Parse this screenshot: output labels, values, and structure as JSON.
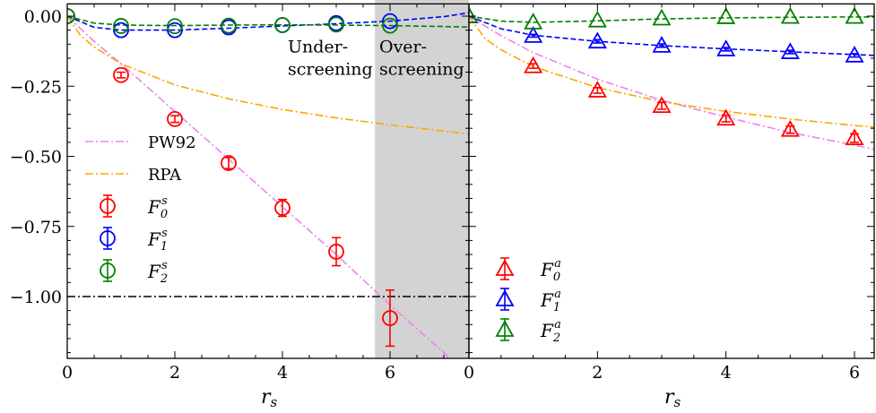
{
  "chart_data": [
    {
      "type": "line",
      "panel": "left",
      "xlabel": "r_s",
      "ylabel": "",
      "xlim": [
        0,
        7.47
      ],
      "ylim": [
        -1.22,
        0.05
      ],
      "xticks": [
        0,
        2,
        4,
        6
      ],
      "xtick_labels": [
        "0",
        "2",
        "4",
        "6"
      ],
      "yticks": [
        0,
        -0.25,
        -0.5,
        -0.75,
        -1.0
      ],
      "ytick_labels": [
        "0.00",
        "−0.25",
        "−0.50",
        "−0.75",
        "−1.00"
      ],
      "shaded_region": {
        "x": [
          5.72,
          7.47
        ],
        "color": "#d3d3d3"
      },
      "hline": {
        "y": -1.0,
        "style": "dashdot",
        "color": "#000000"
      },
      "annotations": [
        {
          "text": [
            "Under-",
            "screening"
          ],
          "x": 4.1,
          "y": -0.13
        },
        {
          "text": [
            "Over-",
            "screening"
          ],
          "x": 5.8,
          "y": -0.13
        }
      ],
      "legend_position": "left-middle",
      "curves": [
        {
          "name": "PW92",
          "style": "dashdot",
          "color": "#ee82ee",
          "x": [
            0,
            0.5,
            1,
            2,
            3,
            4,
            5,
            6,
            7,
            7.47
          ],
          "y": [
            0,
            -0.09,
            -0.17,
            -0.34,
            -0.51,
            -0.68,
            -0.85,
            -1.03,
            -1.2,
            -1.28
          ]
        },
        {
          "name": "RPA",
          "style": "dashdot",
          "color": "#ffa500",
          "x": [
            0,
            0.25,
            0.5,
            1,
            2,
            3,
            4,
            5,
            6,
            7,
            7.47
          ],
          "y": [
            0,
            -0.07,
            -0.11,
            -0.17,
            -0.245,
            -0.295,
            -0.333,
            -0.363,
            -0.388,
            -0.41,
            -0.42
          ]
        },
        {
          "name": "F1s fit",
          "style": "dashed",
          "color": "#0000ff",
          "legend": false,
          "x": [
            0,
            0.5,
            1,
            2,
            3,
            4,
            5,
            6,
            7,
            7.47
          ],
          "y": [
            0,
            -0.04,
            -0.05,
            -0.05,
            -0.043,
            -0.035,
            -0.027,
            -0.018,
            -0.002,
            0.012
          ]
        },
        {
          "name": "F2s fit",
          "style": "dashed",
          "color": "#008000",
          "legend": false,
          "x": [
            0,
            0.5,
            1,
            2,
            3,
            4,
            5,
            6,
            7,
            7.47
          ],
          "y": [
            0,
            -0.025,
            -0.032,
            -0.034,
            -0.032,
            -0.031,
            -0.032,
            -0.034,
            -0.037,
            -0.039
          ]
        }
      ],
      "series": [
        {
          "name": "F_0^s",
          "label_main": "F",
          "label_sub": "0",
          "label_sup": "s",
          "marker": "circle",
          "color": "#ff0000",
          "x": [
            1,
            2,
            3,
            4,
            5,
            6
          ],
          "y": [
            -0.21,
            -0.367,
            -0.524,
            -0.684,
            -0.84,
            -1.077
          ],
          "err": [
            0.01,
            0.012,
            0.02,
            0.03,
            0.05,
            0.1
          ]
        },
        {
          "name": "F_1^s",
          "label_main": "F",
          "label_sub": "1",
          "label_sup": "s",
          "marker": "circle",
          "color": "#0000ff",
          "x": [
            0,
            1,
            2,
            3,
            4,
            5,
            6
          ],
          "y": [
            0,
            -0.05,
            -0.05,
            -0.04,
            -0.032,
            -0.025,
            -0.018
          ],
          "err": [
            0,
            0,
            0,
            0,
            0,
            0,
            0
          ]
        },
        {
          "name": "F_2^s",
          "label_main": "F",
          "label_sub": "2",
          "label_sup": "s",
          "marker": "circle",
          "color": "#008000",
          "x": [
            0,
            1,
            2,
            3,
            4,
            5,
            6
          ],
          "y": [
            0,
            -0.035,
            -0.036,
            -0.034,
            -0.032,
            -0.03,
            -0.034
          ],
          "err": [
            0,
            0,
            0,
            0,
            0,
            0,
            0
          ]
        }
      ]
    },
    {
      "type": "line",
      "panel": "right",
      "xlabel": "r_s",
      "ylabel": "",
      "xlim": [
        0,
        6.3
      ],
      "ylim": [
        -1.22,
        0.05
      ],
      "xticks": [
        0,
        2,
        4,
        6
      ],
      "xtick_labels": [
        "0",
        "2",
        "4",
        "6"
      ],
      "legend_position": "lower-left",
      "curves": [
        {
          "name": "PW92",
          "style": "dashdot",
          "color": "#ee82ee",
          "legend": false,
          "x": [
            0,
            0.5,
            1,
            2,
            3,
            4,
            5,
            6,
            6.3
          ],
          "y": [
            0,
            -0.07,
            -0.13,
            -0.225,
            -0.3,
            -0.36,
            -0.415,
            -0.46,
            -0.475
          ]
        },
        {
          "name": "RPA",
          "style": "dashdot",
          "color": "#ffa500",
          "legend": false,
          "x": [
            0,
            0.25,
            0.5,
            1,
            2,
            3,
            4,
            5,
            6,
            6.3
          ],
          "y": [
            0,
            -0.08,
            -0.12,
            -0.18,
            -0.255,
            -0.305,
            -0.34,
            -0.367,
            -0.39,
            -0.396
          ]
        },
        {
          "name": "F1a fit",
          "style": "dashed",
          "color": "#0000ff",
          "legend": false,
          "x": [
            0,
            0.5,
            1,
            2,
            3,
            4,
            5,
            6,
            6.3
          ],
          "y": [
            0,
            -0.045,
            -0.068,
            -0.09,
            -0.105,
            -0.117,
            -0.127,
            -0.137,
            -0.14
          ]
        },
        {
          "name": "F2a fit",
          "style": "dashed",
          "color": "#008000",
          "legend": false,
          "x": [
            0,
            0.5,
            1,
            2,
            3,
            4,
            5,
            6,
            6.3
          ],
          "y": [
            0,
            -0.018,
            -0.022,
            -0.017,
            -0.01,
            -0.006,
            -0.004,
            -0.003,
            -0.003
          ]
        }
      ],
      "series": [
        {
          "name": "F_0^a",
          "label_main": "F",
          "label_sub": "0",
          "label_sup": "a",
          "marker": "triangle",
          "color": "#ff0000",
          "x": [
            1,
            2,
            3,
            4,
            5,
            6
          ],
          "y": [
            -0.178,
            -0.265,
            -0.32,
            -0.365,
            -0.405,
            -0.435
          ],
          "err": [
            0.008,
            0.01,
            0.012,
            0.012,
            0.013,
            0.015
          ]
        },
        {
          "name": "F_1^a",
          "label_main": "F",
          "label_sub": "1",
          "label_sup": "a",
          "marker": "triangle",
          "color": "#0000ff",
          "x": [
            0,
            1,
            2,
            3,
            4,
            5,
            6
          ],
          "y": [
            0,
            -0.07,
            -0.09,
            -0.105,
            -0.118,
            -0.128,
            -0.14
          ],
          "err": [
            0,
            0.005,
            0.006,
            0.006,
            0.006,
            0.006,
            0.006
          ]
        },
        {
          "name": "F_2^a",
          "label_main": "F",
          "label_sub": "2",
          "label_sup": "a",
          "marker": "triangle",
          "color": "#008000",
          "x": [
            0,
            1,
            2,
            3,
            4,
            5,
            6
          ],
          "y": [
            0,
            -0.022,
            -0.015,
            -0.008,
            -0.003,
            -0.002,
            -0.002
          ],
          "err": [
            0,
            0,
            0,
            0,
            0,
            0,
            0
          ]
        }
      ]
    }
  ]
}
